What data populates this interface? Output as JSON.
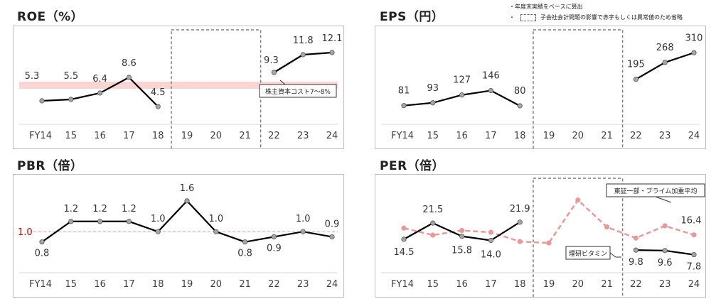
{
  "notes": {
    "note1": "・年度末実績をベースに算出",
    "note2_bullet": "・",
    "note2": "子会社会計問題の影響で赤字もしくは異常値のため省略"
  },
  "colors": {
    "line": "#000000",
    "marker": "#a6a6a6",
    "band": "#fbd4d4",
    "dashed_red": "#e79a99",
    "ref_red": "#c00000",
    "gap_box": "#7f7f7f"
  },
  "categories": [
    "FY14",
    "15",
    "16",
    "17",
    "18",
    "19",
    "20",
    "21",
    "22",
    "23",
    "24"
  ],
  "chart_data": [
    {
      "id": "roe",
      "type": "line",
      "title": "ROE（%）",
      "ylim": [
        2,
        15
      ],
      "categories": [
        "FY14",
        "15",
        "16",
        "17",
        "18",
        "19",
        "20",
        "21",
        "22",
        "23",
        "24"
      ],
      "series": [
        {
          "values": [
            5.3,
            5.5,
            6.4,
            8.6,
            4.5,
            null,
            null,
            null,
            9.3,
            11.8,
            12.1
          ],
          "labels": [
            "5.3",
            "5.5",
            "6.4",
            "8.6",
            "4.5",
            "",
            "",
            "",
            "9.3",
            "11.8",
            "12.1"
          ]
        }
      ],
      "band": {
        "from": 7,
        "to": 8,
        "label": "株主資本コスト7～8%"
      },
      "gap": {
        "from_index": 5,
        "to_index": 7
      },
      "grid": false
    },
    {
      "id": "eps",
      "type": "line",
      "title": "EPS（円）",
      "ylim": [
        0,
        400
      ],
      "categories": [
        "FY14",
        "15",
        "16",
        "17",
        "18",
        "19",
        "20",
        "21",
        "22",
        "23",
        "24"
      ],
      "series": [
        {
          "values": [
            81,
            93,
            127,
            146,
            80,
            null,
            null,
            null,
            195,
            268,
            310
          ],
          "labels": [
            "81",
            "93",
            "127",
            "146",
            "80",
            "",
            "",
            "",
            "195",
            "268",
            "310"
          ]
        }
      ],
      "gap": {
        "from_index": 5,
        "to_index": 7
      },
      "grid": false
    },
    {
      "id": "pbr",
      "type": "line",
      "title": "PBR（倍）",
      "ylim": [
        0.2,
        2.0
      ],
      "categories": [
        "FY14",
        "15",
        "16",
        "17",
        "18",
        "19",
        "20",
        "21",
        "22",
        "23",
        "24"
      ],
      "series": [
        {
          "values": [
            0.8,
            1.2,
            1.2,
            1.2,
            1.0,
            1.6,
            1.0,
            0.8,
            0.9,
            1.0,
            0.9
          ],
          "labels": [
            "0.8",
            "1.2",
            "1.2",
            "1.2",
            "1.0",
            "1.6",
            "1.0",
            "0.8",
            "0.9",
            "1.0",
            "0.9"
          ]
        }
      ],
      "reference": {
        "value": 1.0,
        "label": "1.0"
      },
      "grid": false
    },
    {
      "id": "per",
      "type": "line",
      "title": "PER（倍）",
      "ylim": [
        0,
        40
      ],
      "categories": [
        "FY14",
        "15",
        "16",
        "17",
        "18",
        "19",
        "20",
        "21",
        "22",
        "23",
        "24"
      ],
      "series": [
        {
          "name": "理研ビタミン",
          "style": "solid",
          "values": [
            14.5,
            21.5,
            15.8,
            14.0,
            21.9,
            null,
            null,
            null,
            9.8,
            9.6,
            7.8
          ],
          "labels": [
            "14.5",
            "21.5",
            "15.8",
            "14.0",
            "21.9",
            "",
            "",
            "",
            "9.8",
            "9.6",
            "7.8"
          ]
        },
        {
          "name": "東証一部・プライム加重平均",
          "style": "dashed",
          "values": [
            19.3,
            16.3,
            18.3,
            17.5,
            13.5,
            12.9,
            31.5,
            19.8,
            15.0,
            20.3,
            16.4
          ],
          "labels": [
            "",
            "",
            "",
            "",
            "",
            "",
            "",
            "",
            "",
            "",
            "16.4"
          ]
        }
      ],
      "gap": {
        "from_index": 5,
        "to_index": 7
      },
      "grid": false
    }
  ]
}
